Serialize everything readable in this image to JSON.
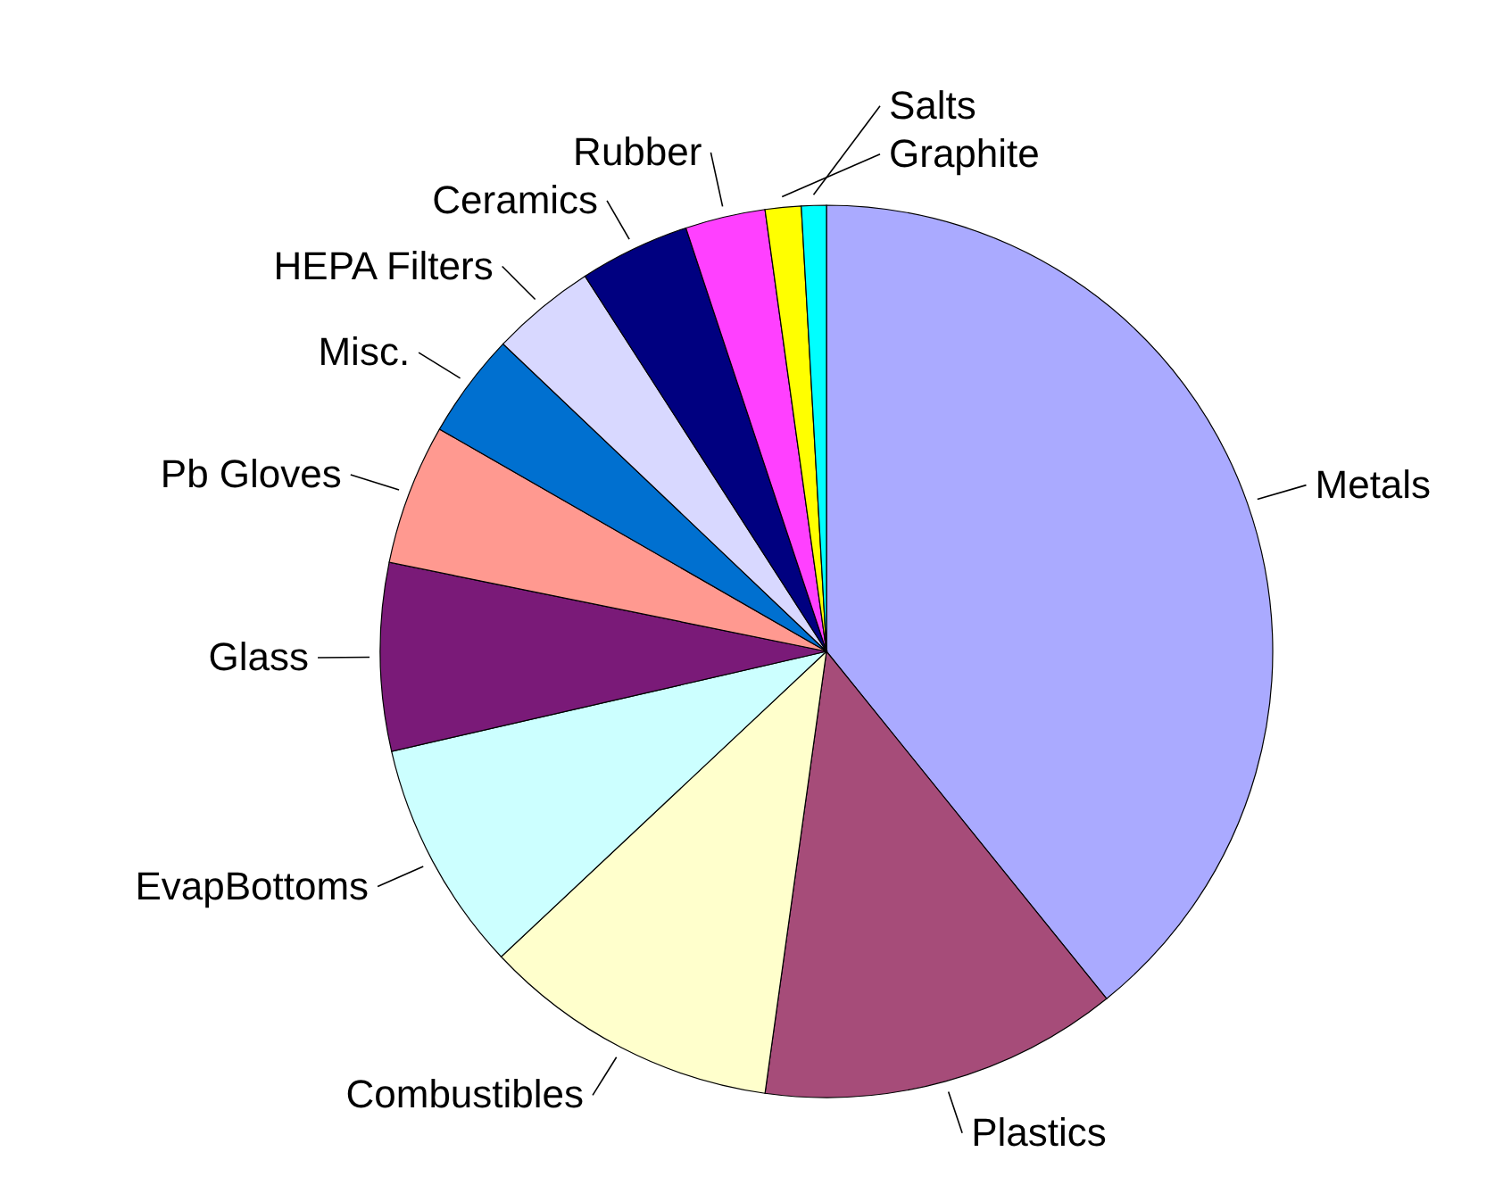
{
  "chart_data": {
    "type": "pie",
    "categories": [
      "Metals",
      "Plastics",
      "Combustibles",
      "EvapBottoms",
      "Glass",
      "Pb Gloves",
      "Misc.",
      "HEPA Filters",
      "Ceramics",
      "Rubber",
      "Graphite",
      "Salts"
    ],
    "values": [
      39.2,
      13,
      10.8,
      8.4,
      6.8,
      5.1,
      3.8,
      3.8,
      4.0,
      2.9,
      1.3,
      0.9
    ],
    "colors": [
      "#aaaaff",
      "#a64c79",
      "#ffffcc",
      "#ccffff",
      "#7a1a78",
      "#ff9990",
      "#0070d0",
      "#d8d8ff",
      "#000080",
      "#ff40ff",
      "#ffff00",
      "#00ffff"
    ]
  }
}
